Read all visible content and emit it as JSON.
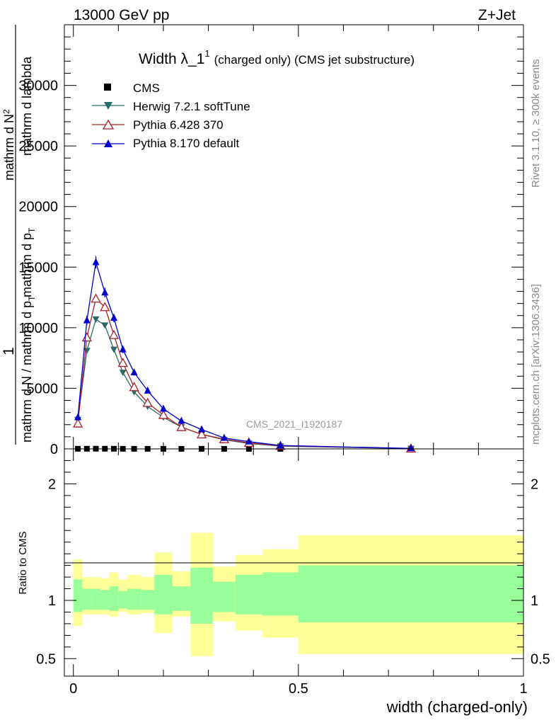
{
  "header": {
    "left": "13000 GeV pp",
    "right": "Z+Jet"
  },
  "side_labels": {
    "rivet": "Rivet 3.1.10, ≥ 300k events",
    "mcplots": "mcplots.cern.ch [arXiv:1306.3436]"
  },
  "watermark": "CMS_2021_I1920187",
  "chart_data": [
    {
      "type": "line",
      "panel": "main",
      "title_main": "Width λ_1",
      "title_sup": "1",
      "title_rest": "(charged only) (CMS jet substructure)",
      "ylabel_parts": {
        "one": "1",
        "a": "mathrm d N / mathrm d p",
        "a_sub": "T",
        "b": "mathrm d N",
        "b_sup": "2",
        "c": "mathrm d p",
        "c_sub": "T",
        "d": "mathrm d lambda"
      },
      "xlim": [
        -0.02,
        1.0
      ],
      "ylim": [
        0,
        35000
      ],
      "yticks": [
        0,
        5000,
        10000,
        15000,
        20000,
        25000,
        30000
      ],
      "ytick_labels": [
        "0",
        "5000",
        "10000",
        "15000",
        "20000",
        "25000",
        "30000"
      ],
      "x": [
        0.01,
        0.03,
        0.05,
        0.07,
        0.09,
        0.11,
        0.135,
        0.165,
        0.2,
        0.24,
        0.285,
        0.335,
        0.39,
        0.46,
        0.75
      ],
      "series": [
        {
          "name": "CMS",
          "marker": "square",
          "color": "#000000",
          "values": [
            10,
            12,
            14,
            12,
            10,
            8,
            7,
            6,
            5,
            4,
            3,
            2,
            1.5,
            1,
            0.3
          ]
        },
        {
          "name": "Herwig 7.2.1 softTune",
          "marker": "triangle-down",
          "color": "#2a6a6a",
          "values": [
            2400,
            8100,
            10700,
            10200,
            8200,
            6300,
            4700,
            3500,
            2600,
            1800,
            1200,
            750,
            450,
            220,
            30
          ]
        },
        {
          "name": "Pythia 6.428 370",
          "marker": "triangle-open",
          "color": "#aa1f26",
          "values": [
            2100,
            9200,
            12400,
            11700,
            9400,
            7100,
            5100,
            3800,
            2800,
            1800,
            1200,
            800,
            500,
            250,
            30
          ]
        },
        {
          "name": "Pythia 8.170 default",
          "marker": "triangle-up",
          "color": "#0000cc",
          "values": [
            2600,
            10600,
            15400,
            12900,
            10800,
            8200,
            6300,
            4800,
            3300,
            2300,
            1600,
            900,
            600,
            280,
            40
          ]
        }
      ],
      "errors_pythia8": [
        200,
        400,
        500,
        400,
        350,
        300,
        250,
        200,
        150,
        120,
        100,
        80,
        60,
        40,
        10
      ]
    },
    {
      "type": "area",
      "panel": "ratio",
      "ylabel": "Ratio to CMS",
      "xlabel": "width (charged-only)",
      "xlim": [
        -0.02,
        1.0
      ],
      "ylim": [
        0.35,
        2.3
      ],
      "yticks": [
        0.5,
        1,
        2
      ],
      "ytick_labels": [
        "0.5",
        "1",
        "2"
      ],
      "xticks": [
        0,
        0.5,
        1
      ],
      "xtick_labels": [
        "0",
        "0.5",
        "1"
      ],
      "bins": [
        {
          "x0": 0.0,
          "x1": 0.02,
          "yl": 0.78,
          "yh": 1.35,
          "gl": 0.9,
          "gh": 1.18
        },
        {
          "x0": 0.02,
          "x1": 0.04,
          "yl": 0.88,
          "yh": 1.2,
          "gl": 0.92,
          "gh": 1.1
        },
        {
          "x0": 0.04,
          "x1": 0.06,
          "yl": 0.88,
          "yh": 1.2,
          "gl": 0.92,
          "gh": 1.1
        },
        {
          "x0": 0.06,
          "x1": 0.08,
          "yl": 0.88,
          "yh": 1.19,
          "gl": 0.92,
          "gh": 1.09
        },
        {
          "x0": 0.08,
          "x1": 0.1,
          "yl": 0.86,
          "yh": 1.24,
          "gl": 0.91,
          "gh": 1.12
        },
        {
          "x0": 0.1,
          "x1": 0.12,
          "yl": 0.9,
          "yh": 1.18,
          "gl": 0.93,
          "gh": 1.08
        },
        {
          "x0": 0.12,
          "x1": 0.15,
          "yl": 0.88,
          "yh": 1.22,
          "gl": 0.92,
          "gh": 1.1
        },
        {
          "x0": 0.15,
          "x1": 0.18,
          "yl": 0.89,
          "yh": 1.2,
          "gl": 0.92,
          "gh": 1.09
        },
        {
          "x0": 0.18,
          "x1": 0.22,
          "yl": 0.72,
          "yh": 1.41,
          "gl": 0.88,
          "gh": 1.22
        },
        {
          "x0": 0.22,
          "x1": 0.26,
          "yl": 0.86,
          "yh": 1.25,
          "gl": 0.91,
          "gh": 1.12
        },
        {
          "x0": 0.26,
          "x1": 0.31,
          "yl": 0.52,
          "yh": 1.58,
          "gl": 0.8,
          "gh": 1.28
        },
        {
          "x0": 0.31,
          "x1": 0.36,
          "yl": 0.82,
          "yh": 1.29,
          "gl": 0.9,
          "gh": 1.16
        },
        {
          "x0": 0.36,
          "x1": 0.42,
          "yl": 0.74,
          "yh": 1.39,
          "gl": 0.88,
          "gh": 1.22
        },
        {
          "x0": 0.42,
          "x1": 0.5,
          "yl": 0.68,
          "yh": 1.44,
          "gl": 0.87,
          "gh": 1.24
        },
        {
          "x0": 0.5,
          "x1": 1.0,
          "yl": 0.54,
          "yh": 1.56,
          "gl": 0.81,
          "gh": 1.3
        }
      ]
    }
  ],
  "colors": {
    "yellow_band": "#ffff99",
    "green_band": "#99ff99",
    "frame": "#000000",
    "muted_text": "#888888",
    "watermark": "#999999"
  }
}
